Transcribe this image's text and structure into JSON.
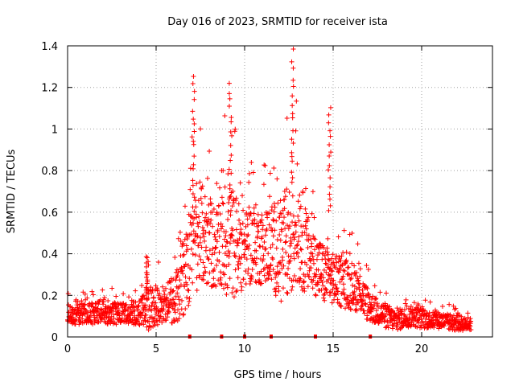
{
  "chart_data": {
    "type": "scatter",
    "title": "Day 016 of 2023, SRMTID for receiver ista",
    "xlabel": "GPS time / hours",
    "ylabel": "SRMTID / TECUs",
    "xlim": [
      0,
      24
    ],
    "ylim": [
      0,
      1.4
    ],
    "xticks": [
      0,
      5,
      10,
      15,
      20
    ],
    "yticks": [
      0,
      0.2,
      0.4,
      0.6,
      0.8,
      1.0,
      1.2,
      1.4
    ],
    "xtick_labels": [
      "0",
      "5",
      "10",
      "15",
      "20"
    ],
    "ytick_labels": [
      "0",
      "0.2",
      "0.4",
      "0.6",
      "0.8",
      "1",
      "1.2",
      "1.4"
    ],
    "grid": true,
    "marker": "plus",
    "color": "#ff0000",
    "gap_markers_x": [
      6.9,
      8.7,
      10.0,
      11.5,
      14.0,
      17.1
    ],
    "envelope": {
      "x": [
        0,
        1,
        2,
        3,
        4,
        4.5,
        5,
        5.5,
        6,
        6.5,
        7,
        7.5,
        8,
        8.5,
        9,
        9.5,
        10,
        10.5,
        11,
        11.5,
        12,
        12.5,
        13,
        13.5,
        14,
        14.5,
        15,
        15.5,
        16,
        16.5,
        17,
        17.5,
        18,
        18.5,
        19,
        19.5,
        20,
        20.5,
        21,
        21.5,
        22,
        22.5,
        22.8
      ],
      "base": [
        0.11,
        0.11,
        0.12,
        0.11,
        0.12,
        0.13,
        0.15,
        0.16,
        0.18,
        0.28,
        0.42,
        0.5,
        0.45,
        0.42,
        0.48,
        0.44,
        0.42,
        0.45,
        0.43,
        0.45,
        0.4,
        0.45,
        0.55,
        0.4,
        0.35,
        0.3,
        0.28,
        0.26,
        0.25,
        0.22,
        0.15,
        0.12,
        0.1,
        0.08,
        0.09,
        0.1,
        0.09,
        0.08,
        0.08,
        0.07,
        0.07,
        0.06,
        0.06
      ],
      "spread": [
        0.05,
        0.05,
        0.06,
        0.05,
        0.06,
        0.1,
        0.1,
        0.08,
        0.12,
        0.18,
        0.25,
        0.25,
        0.22,
        0.2,
        0.3,
        0.25,
        0.18,
        0.2,
        0.18,
        0.2,
        0.25,
        0.3,
        0.3,
        0.2,
        0.15,
        0.15,
        0.12,
        0.12,
        0.12,
        0.1,
        0.08,
        0.06,
        0.06,
        0.05,
        0.05,
        0.05,
        0.05,
        0.04,
        0.04,
        0.04,
        0.04,
        0.03,
        0.03
      ]
    },
    "peaks": [
      {
        "x": 4.5,
        "y": 0.39
      },
      {
        "x": 7.1,
        "y": 1.25
      },
      {
        "x": 9.2,
        "y": 1.21
      },
      {
        "x": 12.7,
        "y": 1.37
      },
      {
        "x": 14.8,
        "y": 1.09
      }
    ]
  }
}
